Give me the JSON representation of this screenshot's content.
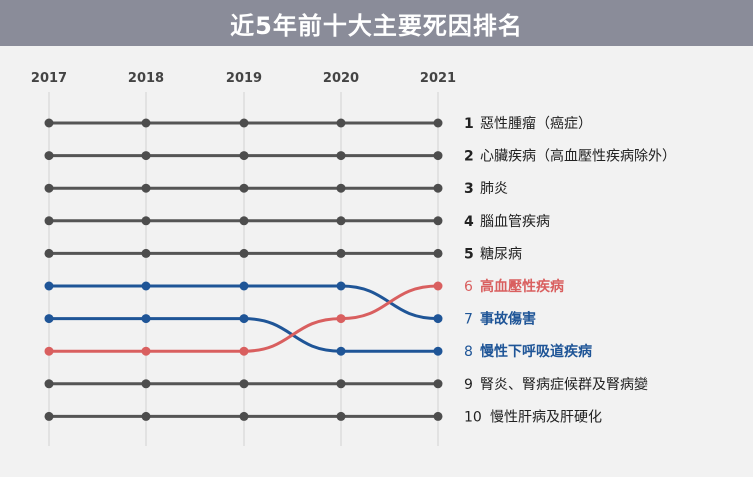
{
  "chart_data": {
    "type": "line",
    "title": "近5年前十大主要死因排名",
    "x": [
      "2017",
      "2018",
      "2019",
      "2020",
      "2021"
    ],
    "y_reversed": true,
    "grid": true,
    "series": [
      {
        "name": "惡性腫瘤（癌症）",
        "rank_label": "1",
        "values": [
          1,
          1,
          1,
          1,
          1
        ],
        "color": "#4d4d4d",
        "bold": true
      },
      {
        "name": "心臟疾病（高血壓性疾病除外）",
        "rank_label": "2",
        "values": [
          2,
          2,
          2,
          2,
          2
        ],
        "color": "#4d4d4d",
        "bold": true
      },
      {
        "name": "肺炎",
        "rank_label": "3",
        "values": [
          3,
          3,
          3,
          3,
          3
        ],
        "color": "#4d4d4d",
        "bold": true
      },
      {
        "name": "腦血管疾病",
        "rank_label": "4",
        "values": [
          4,
          4,
          4,
          4,
          4
        ],
        "color": "#4d4d4d",
        "bold": true
      },
      {
        "name": "糖尿病",
        "rank_label": "5",
        "values": [
          5,
          5,
          5,
          5,
          5
        ],
        "color": "#4d4d4d",
        "bold": true
      },
      {
        "name": "事故傷害",
        "rank_label": "7",
        "values": [
          6,
          6,
          6,
          6,
          7
        ],
        "color": "#1f5597",
        "bold": true
      },
      {
        "name": "慢性下呼吸道疾病",
        "rank_label": "8",
        "values": [
          7,
          7,
          7,
          8,
          8
        ],
        "color": "#1f5597",
        "bold": true
      },
      {
        "name": "高血壓性疾病",
        "rank_label": "6",
        "values": [
          8,
          8,
          8,
          7,
          6
        ],
        "color": "#d95f5f",
        "bold": true
      },
      {
        "name": "腎炎、腎病症候群及腎病變",
        "rank_label": "9",
        "values": [
          9,
          9,
          9,
          9,
          9
        ],
        "color": "#4d4d4d",
        "bold": false
      },
      {
        "name": "慢性肝病及肝硬化",
        "rank_label": "10",
        "values": [
          10,
          10,
          10,
          10,
          10
        ],
        "color": "#4d4d4d",
        "bold": false
      }
    ],
    "line_color": "#555555",
    "gridline_color": "#dddddd"
  }
}
